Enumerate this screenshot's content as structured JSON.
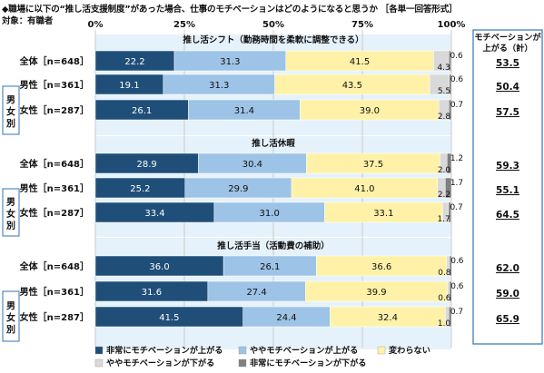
{
  "header": {
    "title": "◆職場に以下の“推し活支援制度”があった場合、仕事のモチベーションはどのようになると思うか ［各単一回答形式］",
    "subject": "対象：有職者"
  },
  "motivation_header": [
    "モチベーションが",
    "上がる（計）"
  ],
  "group_label": "男女別",
  "chart_data": {
    "type": "bar",
    "orientation": "horizontal",
    "stacked": true,
    "percent": true,
    "xlim": [
      0,
      100
    ],
    "x_ticks": [
      "0%",
      "25%",
      "50%",
      "75%",
      "100%"
    ],
    "legend": {
      "position": "bottom",
      "labels": [
        "非常にモチベーションが上がる",
        "ややモチベーションが上がる",
        "変わらない",
        "ややモチベーションが下がる",
        "非常にモチベーションが下がる"
      ]
    },
    "colors": [
      "#1f4e79",
      "#9dc3e6",
      "#fff2a8",
      "#d9d9d9",
      "#7f7f7f"
    ],
    "sections": [
      {
        "title": "推し活シフト（勤務時間を柔軟に調整できる）",
        "rows": [
          {
            "label": "全体［n=648］",
            "values": [
              22.2,
              31.3,
              41.5,
              4.3,
              0.6
            ],
            "labels": [
              "22.2",
              "31.3",
              "41.5",
              "4.3",
              "0.6"
            ],
            "motivation_up": "53.5"
          },
          {
            "label": "男性［n=361］",
            "values": [
              19.1,
              31.3,
              43.5,
              5.5,
              0.6
            ],
            "labels": [
              "19.1",
              "31.3",
              "43.5",
              "5.5",
              "0.6"
            ],
            "motivation_up": "50.4"
          },
          {
            "label": "女性［n=287］",
            "values": [
              26.1,
              31.4,
              39.0,
              2.8,
              0.7
            ],
            "labels": [
              "26.1",
              "31.4",
              "39.0",
              "2.8",
              "0.7"
            ],
            "motivation_up": "57.5"
          }
        ]
      },
      {
        "title": "推し活休暇",
        "rows": [
          {
            "label": "全体［n=648］",
            "values": [
              28.9,
              30.4,
              37.5,
              2.0,
              1.2
            ],
            "labels": [
              "28.9",
              "30.4",
              "37.5",
              "2.0",
              "1.2"
            ],
            "motivation_up": "59.3"
          },
          {
            "label": "男性［n=361］",
            "values": [
              25.2,
              29.9,
              41.0,
              2.2,
              1.7
            ],
            "labels": [
              "25.2",
              "29.9",
              "41.0",
              "2.2",
              "1.7"
            ],
            "motivation_up": "55.1"
          },
          {
            "label": "女性［n=287］",
            "values": [
              33.4,
              31.0,
              33.1,
              1.7,
              0.7
            ],
            "labels": [
              "33.4",
              "31.0",
              "33.1",
              "1.7",
              "0.7"
            ],
            "motivation_up": "64.5"
          }
        ]
      },
      {
        "title": "推し活手当（活動費の補助）",
        "rows": [
          {
            "label": "全体［n=648］",
            "values": [
              36.0,
              26.1,
              36.6,
              0.8,
              0.6
            ],
            "labels": [
              "36.0",
              "26.1",
              "36.6",
              "0.8",
              "0.6"
            ],
            "motivation_up": "62.0"
          },
          {
            "label": "男性［n=361］",
            "values": [
              31.6,
              27.4,
              39.9,
              0.6,
              0.6
            ],
            "labels": [
              "31.6",
              "27.4",
              "39.9",
              "0.6",
              "0.6"
            ],
            "motivation_up": "59.0"
          },
          {
            "label": "女性［n=287］",
            "values": [
              41.5,
              24.4,
              32.4,
              1.0,
              0.7
            ],
            "labels": [
              "41.5",
              "24.4",
              "32.4",
              "1.0",
              "0.7"
            ],
            "motivation_up": "65.9"
          }
        ]
      }
    ]
  }
}
